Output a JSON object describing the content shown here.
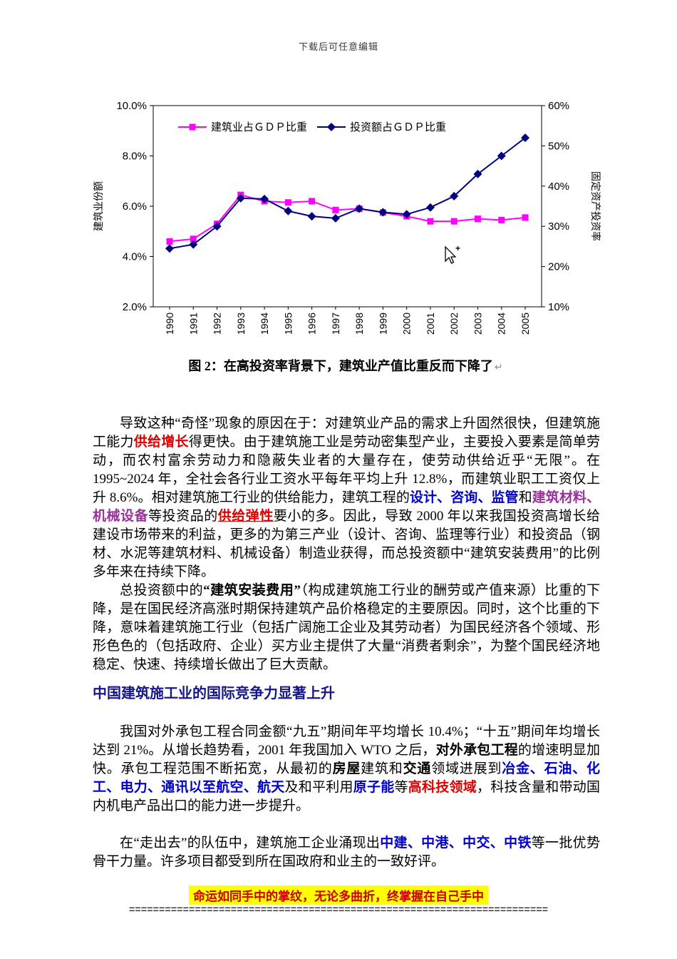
{
  "page": {
    "header_note": "下载后可任意编辑",
    "footer_quote": "命运如同手中的掌纹，无论多曲折，终掌握在自己手中",
    "footer_divider": "======================================================================"
  },
  "chart": {
    "caption": "图 2：在高投资率背景下，建筑业产值比重反而下降了",
    "return_mark": "↵"
  },
  "chart_data": {
    "type": "line",
    "x": [
      "1990",
      "1991",
      "1992",
      "1993",
      "1994",
      "1995",
      "1996",
      "1997",
      "1998",
      "1999",
      "2000",
      "2001",
      "2002",
      "2003",
      "2004",
      "2005"
    ],
    "series": [
      {
        "name": "建筑业占ＧＤＰ比重",
        "axis": "left",
        "color": "#ff00ff",
        "marker": "square",
        "values": [
          4.6,
          4.7,
          5.3,
          6.45,
          6.2,
          6.15,
          6.2,
          5.85,
          5.9,
          5.75,
          5.6,
          5.4,
          5.4,
          5.5,
          5.45,
          5.55
        ]
      },
      {
        "name": "投资额占ＧＤＰ比重",
        "axis": "right",
        "color": "#000080",
        "marker": "diamond",
        "values": [
          24.5,
          25.5,
          30,
          37,
          36.8,
          33.8,
          32.5,
          32,
          34.4,
          33.5,
          33,
          34.7,
          37.5,
          43,
          47.5,
          52
        ]
      }
    ],
    "left_axis": {
      "label": "建筑业份额",
      "min": 2,
      "max": 10,
      "ticks": [
        {
          "label": "10.0%",
          "value": 10
        },
        {
          "label": "8.0%",
          "value": 8
        },
        {
          "label": "6.0%",
          "value": 6
        },
        {
          "label": "4.0%",
          "value": 4
        },
        {
          "label": "2.0%",
          "value": 2
        }
      ]
    },
    "right_axis": {
      "label": "固定资产投资率",
      "min": 10,
      "max": 60,
      "ticks": [
        {
          "label": "60%",
          "value": 60
        },
        {
          "label": "50%",
          "value": 50
        },
        {
          "label": "40%",
          "value": 40
        },
        {
          "label": "30%",
          "value": 30
        },
        {
          "label": "20%",
          "value": 20
        },
        {
          "label": "10%",
          "value": 10
        }
      ]
    },
    "legend_position": "top-inside",
    "grid": false
  },
  "content": {
    "p1": {
      "runs": [
        {
          "t": "导致这种“奇怪”现象的原因在于：对建筑业产品的需求上升固然很快，但建筑施工能力",
          "s": "plain"
        },
        {
          "t": "供给增长",
          "s": "red-bold"
        },
        {
          "t": "得更快。由于建筑施工业是劳动密集型产业，主要投入要素是简单劳动，而农村富余劳动力和隐蔽失业者的大量存在，使劳动供给近乎“无限”。在 1995~2024 年，全社会各行业工资水平每年平均上升 12.8%，而建筑业职工工资仅上升 8.6%。相对建筑施工行业的供给能力，建筑工程的",
          "s": "plain"
        },
        {
          "t": "设计、咨询、监管",
          "s": "blue-bold"
        },
        {
          "t": "和",
          "s": "plain"
        },
        {
          "t": "建筑材料、机械设备",
          "s": "purple-bold"
        },
        {
          "t": "等投资品的",
          "s": "plain"
        },
        {
          "t": "供给弹性",
          "s": "red-bold-u"
        },
        {
          "t": "要小的多。因此，导致 2000 年以来我国投资高增长给建设市场带来的利益，更多的为第三产业（设计、咨询、监理等行业）和投资品（钢材、水泥等建筑材料、机械设备）制造业获得，而总投资额中“建筑安装费用”的比例多年来在持续下降。",
          "s": "plain"
        }
      ]
    },
    "p2": {
      "runs": [
        {
          "t": "总投资额中的",
          "s": "plain"
        },
        {
          "t": "“建筑安装费用”",
          "s": "bold"
        },
        {
          "t": "（构成建筑施工行业的酬劳或产值来源）比重的下降，是在国民经济高涨时期保持建筑产品价格稳定的主要原因。同时，这个比重的下降，意味着建筑施工行业（包括广阔施工企业及其劳动者）为国民经济各个领域、形形色色的（包括政府、企业）买方业主提供了大量“消费者剩余”，为整个国民经济地稳定、快速、持续增长做出了巨大贡献。",
          "s": "plain"
        }
      ]
    },
    "heading": "中国建筑施工业的国际竞争力显著上升",
    "p3": {
      "runs": [
        {
          "t": "我国对外承包工程合同金额“九五”期间年平均增长 10.4%；“十五”期间年均增长达到 21%。从增长趋势看，2001 年我国加入 WTO 之后，",
          "s": "plain"
        },
        {
          "t": "对外承包工程",
          "s": "bold"
        },
        {
          "t": "的增速明显加快。承包工程范围不断拓宽，从最初的",
          "s": "plain"
        },
        {
          "t": "房屋",
          "s": "bold"
        },
        {
          "t": "建筑和",
          "s": "plain"
        },
        {
          "t": "交通",
          "s": "bold"
        },
        {
          "t": "领域进展到",
          "s": "plain"
        },
        {
          "t": "冶金、石油、化工、电力、通讯以至航空、航天",
          "s": "blue-bold"
        },
        {
          "t": "及和平利用",
          "s": "plain"
        },
        {
          "t": "原子能",
          "s": "blue-bold"
        },
        {
          "t": "等",
          "s": "plain"
        },
        {
          "t": "高科技领域",
          "s": "red-bold"
        },
        {
          "t": "，科技含量和带动国内机电产品出口的能力进一步提升。",
          "s": "plain"
        }
      ]
    },
    "p4": {
      "runs": [
        {
          "t": "在“走出去”的队伍中，建筑施工企业涌现出",
          "s": "plain"
        },
        {
          "t": "中建、中港、中交、中铁",
          "s": "blue-bold"
        },
        {
          "t": "等一批优势骨干力量。许多项目都受到所在国政府和业主的一致好评。",
          "s": "plain"
        }
      ]
    }
  }
}
